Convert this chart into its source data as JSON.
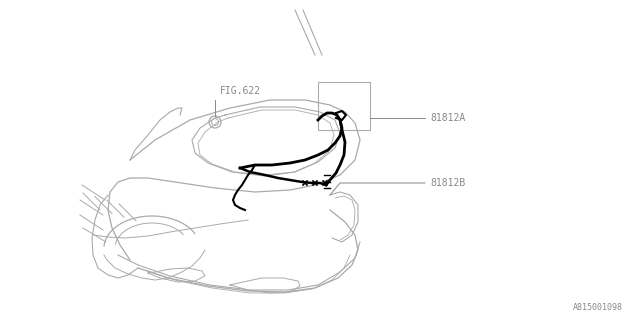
{
  "background_color": "#ffffff",
  "line_color": "#aaaaaa",
  "dark_line_color": "#000000",
  "text_color": "#888888",
  "fig_width": 6.4,
  "fig_height": 3.2,
  "dpi": 100,
  "label_81812A": "81812A",
  "label_81812B": "81812B",
  "label_fig622": "FIG.622",
  "label_ref": "A815001098",
  "font_size": 7,
  "ref_font_size": 6
}
